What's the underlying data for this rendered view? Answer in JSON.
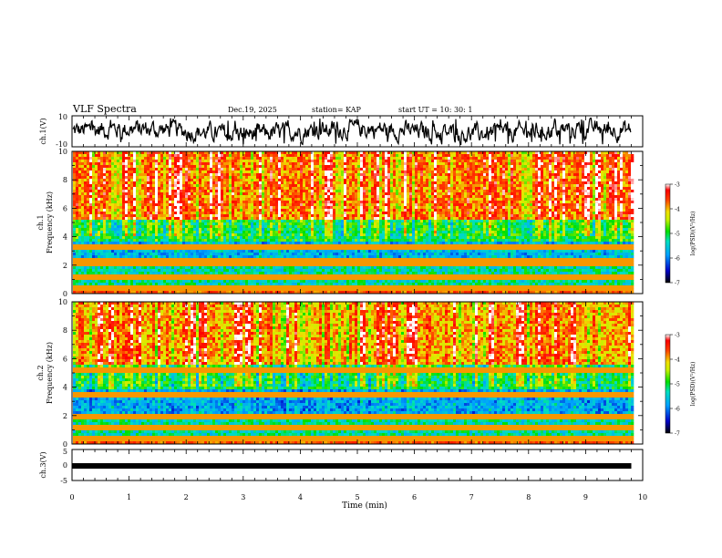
{
  "header": {
    "title": "VLF Spectra",
    "date": "Dec.19, 2025",
    "station": "station= KAP",
    "start": "start  UT  =   10: 30: 1"
  },
  "chart_data": [
    {
      "type": "line",
      "name": "ch1-waveform",
      "ylabel": "ch.1(V)",
      "ylim": [
        -10,
        10
      ],
      "yticks": [
        "10",
        "-10"
      ],
      "xlim": [
        0,
        10
      ],
      "note": "Noisy broadband waveform trace spanning roughly -8 V to +8 V over 0–9.8 min"
    },
    {
      "type": "heatmap",
      "name": "ch1-spectrogram",
      "ylabel": "ch.1\nFrequency (kHz)",
      "ylim": [
        0,
        10
      ],
      "yticks": [
        0,
        2,
        4,
        6,
        8,
        10
      ],
      "xlim": [
        0,
        10
      ],
      "data_end_min": 9.8,
      "colorbar": {
        "label": "log(PSD)(V²/Hz)",
        "range": [
          -7,
          -3
        ],
        "ticks": [
          "-3",
          "-4",
          "-5",
          "-6",
          "-7"
        ]
      },
      "bands_khz": [
        {
          "from": 0.0,
          "to": 2.0,
          "level": -5.3
        },
        {
          "from": 2.0,
          "to": 3.6,
          "level": -5.7
        },
        {
          "from": 3.6,
          "to": 5.2,
          "level": -5.0
        },
        {
          "from": 5.2,
          "to": 10.0,
          "level": -3.8
        }
      ],
      "lines_khz": [
        0.4,
        1.1,
        2.2,
        2.35,
        3.3
      ]
    },
    {
      "type": "heatmap",
      "name": "ch2-spectrogram",
      "ylabel": "ch.2\nFrequency (kHz)",
      "ylim": [
        0,
        10
      ],
      "yticks": [
        0,
        2,
        4,
        6,
        8,
        10
      ],
      "xlim": [
        0,
        10
      ],
      "data_end_min": 9.8,
      "colorbar": {
        "label": "log(PSD)(V²/Hz)",
        "range": [
          -7,
          -3
        ],
        "ticks": [
          "-3",
          "-4",
          "-5",
          "-6",
          "-7"
        ]
      },
      "bands_khz": [
        {
          "from": 0.0,
          "to": 2.0,
          "level": -5.3
        },
        {
          "from": 2.0,
          "to": 3.8,
          "level": -5.8
        },
        {
          "from": 3.8,
          "to": 5.5,
          "level": -5.1
        },
        {
          "from": 5.5,
          "to": 10.0,
          "level": -4.0
        }
      ],
      "lines_khz": [
        0.3,
        1.2,
        2.0,
        3.5,
        5.2
      ]
    },
    {
      "type": "line",
      "name": "ch3-waveform",
      "ylabel": "ch.3(V)",
      "ylim": [
        -5,
        5
      ],
      "yticks": [
        "5",
        "0",
        "-5"
      ],
      "xlim": [
        0,
        10
      ],
      "level": -0.3,
      "note": "Flat thick trace near 0 V"
    }
  ],
  "xaxis": {
    "label": "Time (min)",
    "ticks": [
      "0",
      "1",
      "2",
      "3",
      "4",
      "5",
      "6",
      "7",
      "8",
      "9",
      "10"
    ]
  }
}
